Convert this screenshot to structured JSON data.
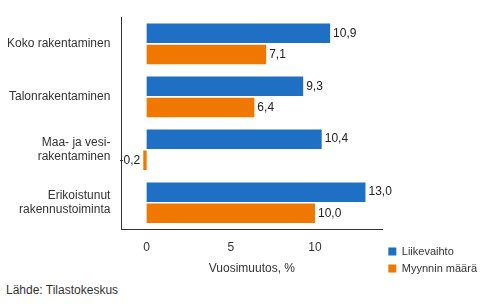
{
  "chart_data": {
    "type": "bar",
    "orientation": "horizontal",
    "categories": [
      "Koko rakentaminen",
      "Talonrakentaminen",
      "Maa- ja vesi-\nrakentaminen",
      "Erikoistunut\nrakennustoiminta"
    ],
    "series": [
      {
        "name": "Liikevaihto",
        "color": "#1f6fc5",
        "values": [
          10.9,
          9.3,
          10.4,
          13.0
        ],
        "value_labels": [
          "10,9",
          "9,3",
          "10,4",
          "13,0"
        ]
      },
      {
        "name": "Myynnin määrä",
        "color": "#f07800",
        "values": [
          7.1,
          6.4,
          -0.2,
          10.0
        ],
        "value_labels": [
          "7,1",
          "6,4",
          "-0,2",
          "10,0"
        ]
      }
    ],
    "x_label": "Vuosimuutos, %",
    "xlim": [
      -1.5,
      14
    ],
    "xticks": [
      0,
      5,
      10
    ],
    "grid": false,
    "legend": "lower right",
    "data_labels": true,
    "source": "Lähde: Tilastokeskus"
  }
}
